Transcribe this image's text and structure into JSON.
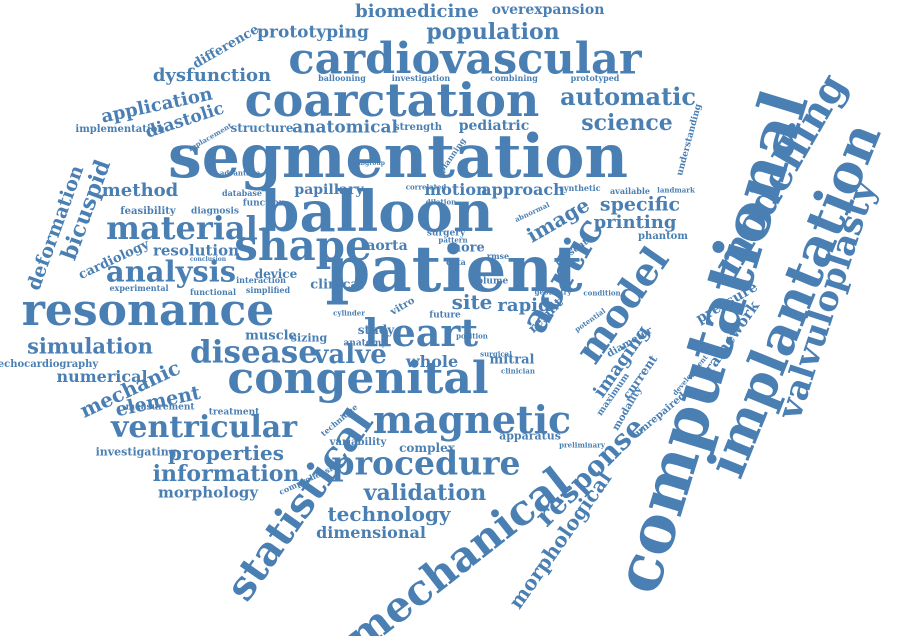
{
  "cloud": {
    "color": "#4a7fb3",
    "words": [
      "biomedicine",
      "overexpansion",
      "prototyping",
      "population",
      "cardiovascular",
      "difference",
      "dysfunction",
      "coarctation",
      "automatic",
      "application",
      "diastolic",
      "implementation",
      "replacement",
      "structure",
      "anatomical",
      "strength",
      "pediatric",
      "science",
      "segmentation",
      "computational",
      "modelling",
      "implantation",
      "valvuloplasty",
      "deformation",
      "bicuspid",
      "method",
      "material",
      "balloon",
      "image",
      "specific",
      "printing",
      "cardiology",
      "resolution",
      "shape",
      "aorta",
      "site",
      "rapid",
      "patient",
      "aortic",
      "model",
      "analysis",
      "resonance",
      "simulation",
      "heart",
      "disease",
      "valve",
      "whole",
      "echocardiography",
      "numerical",
      "mechanic",
      "element",
      "congenital",
      "magnetic",
      "ventricular",
      "statistical",
      "procedure",
      "response",
      "mechanical",
      "investigating",
      "properties",
      "information",
      "morphology",
      "validation",
      "technology",
      "dimensional",
      "morphological",
      "complex",
      "apparatus",
      "variability",
      "technique",
      "imaging",
      "framework",
      "pressure",
      "current",
      "modality",
      "maximum",
      "unrepaired",
      "preliminary",
      "ballooning",
      "investigation",
      "combining",
      "prototyped",
      "feasibility",
      "diagnosis",
      "database",
      "function",
      "papillary",
      "motion",
      "approach",
      "synthetic",
      "available",
      "landmark",
      "phantom",
      "understanding",
      "advantage",
      "subgroup",
      "correlated",
      "interaction",
      "muscle",
      "sizing",
      "clinical",
      "device",
      "simplified",
      "experimental",
      "functional",
      "conclusion",
      "measurement",
      "treatment",
      "study",
      "anatomy",
      "surgery",
      "data",
      "rmse",
      "more",
      "volume",
      "vitro",
      "result",
      "future",
      "geometry",
      "comprehensive",
      "mitral",
      "diameter",
      "present",
      "condition",
      "potential",
      "development",
      "planning",
      "surgical",
      "cylinder",
      "abnormal",
      "dilation",
      "clinician",
      "pattern",
      "position"
    ]
  }
}
